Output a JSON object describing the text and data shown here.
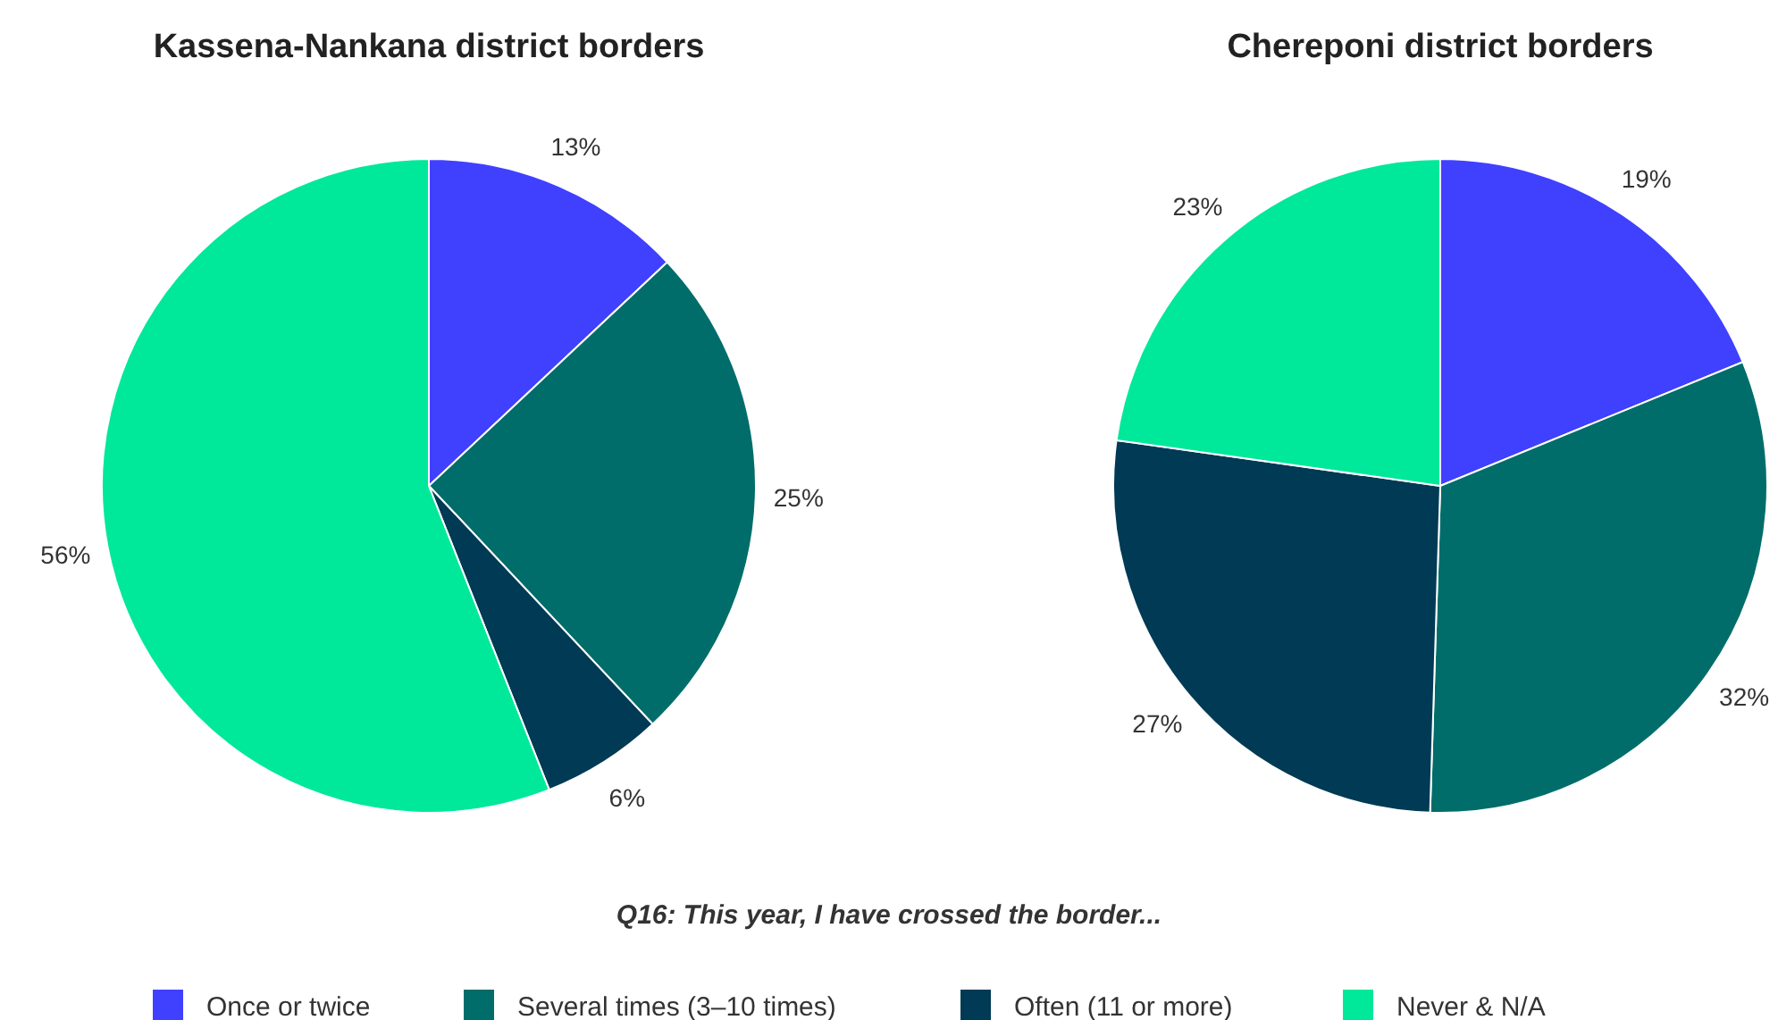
{
  "chart_data": [
    {
      "type": "pie",
      "title": "Kassena-Nankana district borders",
      "legend_title": "Q16: This year, I have crossed the border...",
      "legend": "bottom",
      "value_labels": [
        "13%",
        "25%",
        "6%",
        "56%"
      ],
      "categories": [
        "Once or twice",
        "Several times (3–10 times)",
        "Often (11 or more)",
        "Never & N/A"
      ],
      "values": [
        13,
        25,
        6,
        56
      ],
      "colors": [
        "#4040ff",
        "#006d6a",
        "#003a55",
        "#00e89a"
      ]
    },
    {
      "type": "pie",
      "title": "Chereponi district borders",
      "value_labels": [
        "19%",
        "32%",
        "27%",
        "23%"
      ],
      "categories": [
        null,
        null,
        null,
        null
      ],
      "values": [
        19,
        32,
        27,
        23
      ],
      "colors": [
        "#4040ff",
        "#006d6a",
        "#003a55",
        "#00e89a"
      ]
    }
  ]
}
